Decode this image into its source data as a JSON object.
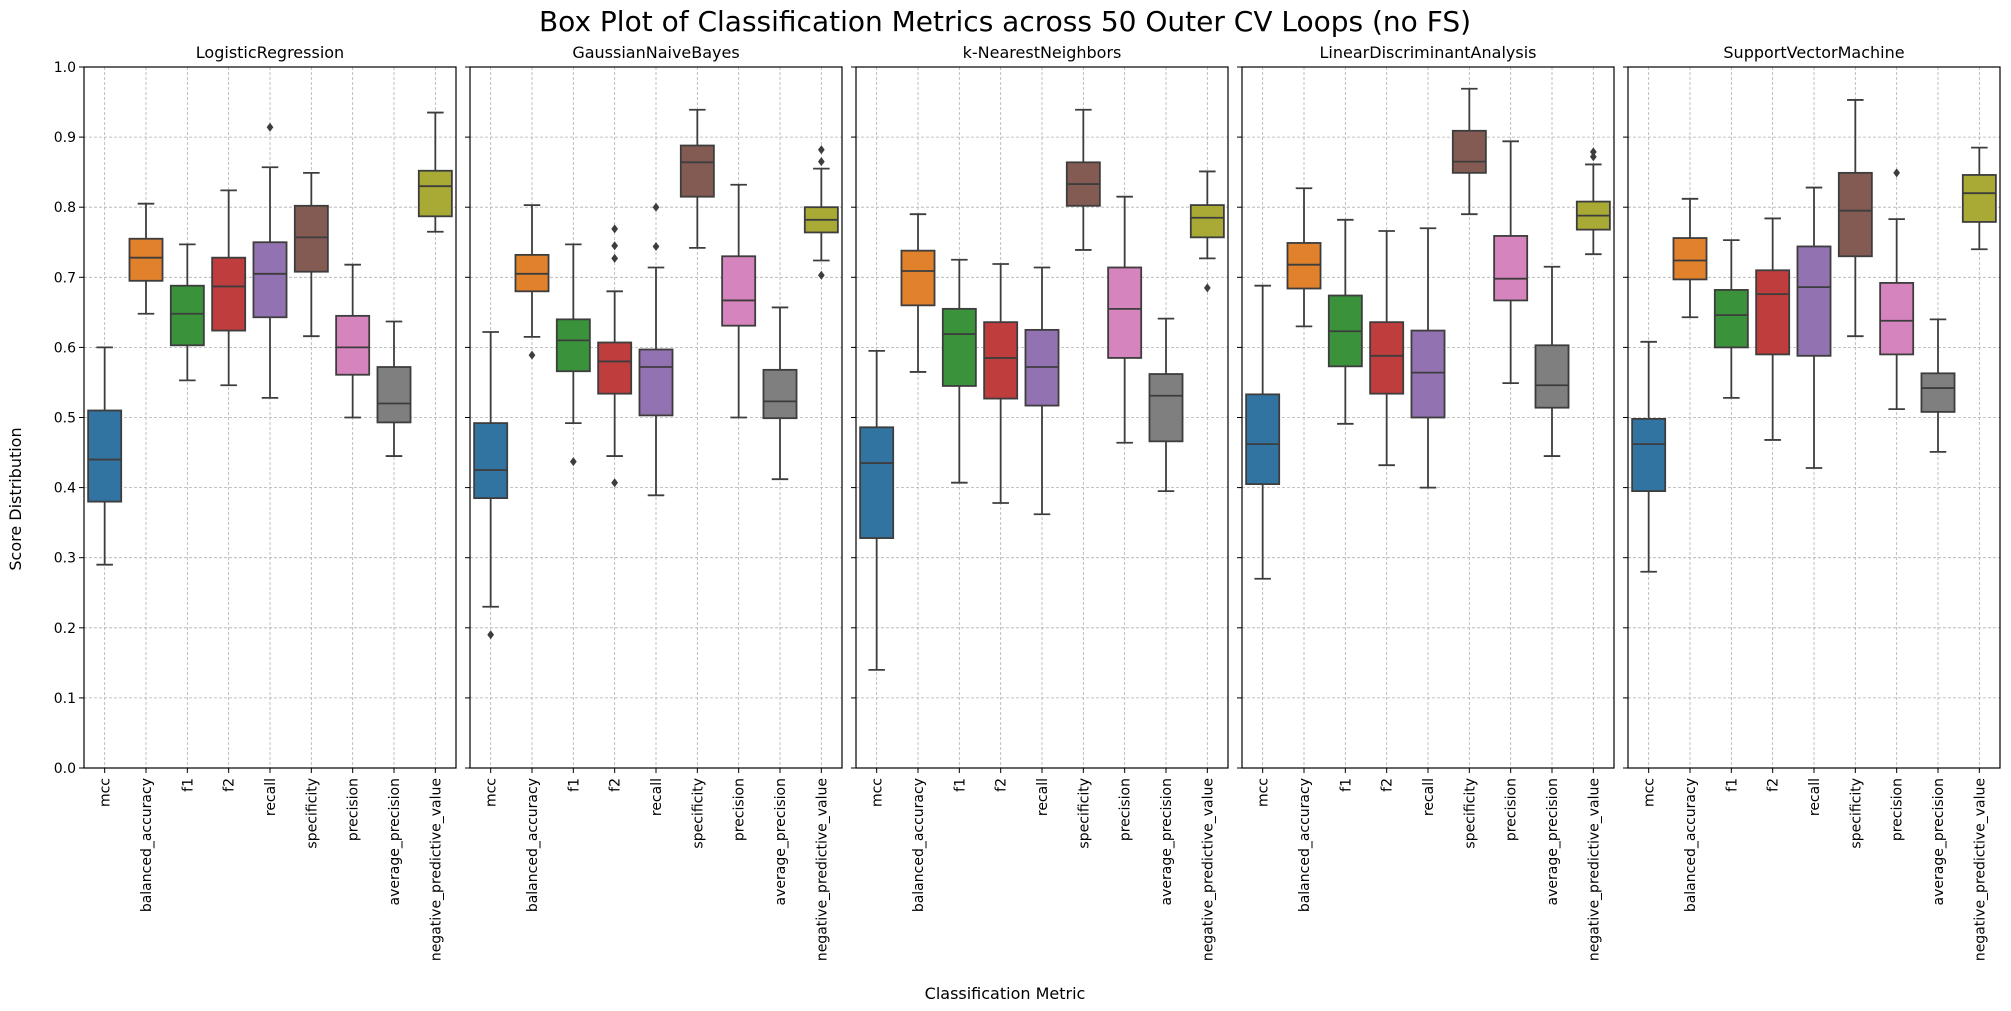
{
  "chart_data": {
    "type": "box",
    "title": "Box Plot of Classification Metrics across 50 Outer CV Loops (no FS)",
    "xlabel": "Classification Metric",
    "ylabel": "Score Distribution",
    "ylim": [
      0,
      1.0
    ],
    "yticks": [
      "0.0",
      "0.1",
      "0.2",
      "0.3",
      "0.4",
      "0.5",
      "0.6",
      "0.7",
      "0.8",
      "0.9",
      "1.0"
    ],
    "grid": true,
    "categories": [
      "mcc",
      "balanced_accuracy",
      "f1",
      "f2",
      "recall",
      "specificity",
      "precision",
      "average_precision",
      "negative_predictive_value"
    ],
    "colors": [
      "#3274a1",
      "#e1812c",
      "#3a923a",
      "#c03d3e",
      "#9372b2",
      "#845b53",
      "#d684bd",
      "#7f7f7f",
      "#a9aa35"
    ],
    "panels": [
      {
        "title": "LogisticRegression",
        "boxes": [
          {
            "q1": 0.38,
            "median": 0.44,
            "q3": 0.51,
            "whislo": 0.29,
            "whishi": 0.6,
            "fliers": []
          },
          {
            "q1": 0.695,
            "median": 0.728,
            "q3": 0.755,
            "whislo": 0.648,
            "whishi": 0.805,
            "fliers": []
          },
          {
            "q1": 0.603,
            "median": 0.648,
            "q3": 0.688,
            "whislo": 0.553,
            "whishi": 0.747,
            "fliers": []
          },
          {
            "q1": 0.624,
            "median": 0.687,
            "q3": 0.728,
            "whislo": 0.546,
            "whishi": 0.824,
            "fliers": []
          },
          {
            "q1": 0.643,
            "median": 0.705,
            "q3": 0.75,
            "whislo": 0.528,
            "whishi": 0.857,
            "fliers": [
              0.914
            ]
          },
          {
            "q1": 0.708,
            "median": 0.757,
            "q3": 0.802,
            "whislo": 0.616,
            "whishi": 0.849,
            "fliers": []
          },
          {
            "q1": 0.561,
            "median": 0.6,
            "q3": 0.645,
            "whislo": 0.5,
            "whishi": 0.718,
            "fliers": []
          },
          {
            "q1": 0.493,
            "median": 0.52,
            "q3": 0.572,
            "whislo": 0.445,
            "whishi": 0.637,
            "fliers": []
          },
          {
            "q1": 0.787,
            "median": 0.83,
            "q3": 0.852,
            "whislo": 0.765,
            "whishi": 0.935,
            "fliers": []
          }
        ]
      },
      {
        "title": "GaussianNaiveBayes",
        "boxes": [
          {
            "q1": 0.385,
            "median": 0.425,
            "q3": 0.492,
            "whislo": 0.23,
            "whishi": 0.622,
            "fliers": [
              0.19
            ]
          },
          {
            "q1": 0.68,
            "median": 0.705,
            "q3": 0.732,
            "whislo": 0.615,
            "whishi": 0.803,
            "fliers": [
              0.589
            ]
          },
          {
            "q1": 0.566,
            "median": 0.61,
            "q3": 0.64,
            "whislo": 0.492,
            "whishi": 0.747,
            "fliers": [
              0.437
            ]
          },
          {
            "q1": 0.534,
            "median": 0.58,
            "q3": 0.607,
            "whislo": 0.445,
            "whishi": 0.68,
            "fliers": [
              0.769,
              0.745,
              0.727,
              0.407
            ]
          },
          {
            "q1": 0.503,
            "median": 0.572,
            "q3": 0.597,
            "whislo": 0.389,
            "whishi": 0.714,
            "fliers": [
              0.8,
              0.744
            ]
          },
          {
            "q1": 0.815,
            "median": 0.864,
            "q3": 0.888,
            "whislo": 0.742,
            "whishi": 0.939,
            "fliers": []
          },
          {
            "q1": 0.631,
            "median": 0.667,
            "q3": 0.73,
            "whislo": 0.5,
            "whishi": 0.832,
            "fliers": []
          },
          {
            "q1": 0.499,
            "median": 0.523,
            "q3": 0.568,
            "whislo": 0.412,
            "whishi": 0.657,
            "fliers": []
          },
          {
            "q1": 0.764,
            "median": 0.782,
            "q3": 0.8,
            "whislo": 0.724,
            "whishi": 0.855,
            "fliers": [
              0.882,
              0.865,
              0.703
            ]
          }
        ]
      },
      {
        "title": "k-NearestNeighbors",
        "boxes": [
          {
            "q1": 0.328,
            "median": 0.435,
            "q3": 0.486,
            "whislo": 0.14,
            "whishi": 0.595,
            "fliers": []
          },
          {
            "q1": 0.66,
            "median": 0.709,
            "q3": 0.738,
            "whislo": 0.565,
            "whishi": 0.79,
            "fliers": []
          },
          {
            "q1": 0.545,
            "median": 0.619,
            "q3": 0.655,
            "whislo": 0.407,
            "whishi": 0.725,
            "fliers": []
          },
          {
            "q1": 0.527,
            "median": 0.585,
            "q3": 0.636,
            "whislo": 0.378,
            "whishi": 0.719,
            "fliers": []
          },
          {
            "q1": 0.517,
            "median": 0.572,
            "q3": 0.625,
            "whislo": 0.362,
            "whishi": 0.714,
            "fliers": []
          },
          {
            "q1": 0.802,
            "median": 0.833,
            "q3": 0.864,
            "whislo": 0.739,
            "whishi": 0.939,
            "fliers": []
          },
          {
            "q1": 0.585,
            "median": 0.655,
            "q3": 0.714,
            "whislo": 0.464,
            "whishi": 0.815,
            "fliers": []
          },
          {
            "q1": 0.466,
            "median": 0.531,
            "q3": 0.562,
            "whislo": 0.395,
            "whishi": 0.641,
            "fliers": []
          },
          {
            "q1": 0.757,
            "median": 0.785,
            "q3": 0.803,
            "whislo": 0.727,
            "whishi": 0.851,
            "fliers": [
              0.685
            ]
          }
        ]
      },
      {
        "title": "LinearDiscriminantAnalysis",
        "boxes": [
          {
            "q1": 0.405,
            "median": 0.462,
            "q3": 0.533,
            "whislo": 0.27,
            "whishi": 0.688,
            "fliers": []
          },
          {
            "q1": 0.684,
            "median": 0.718,
            "q3": 0.749,
            "whislo": 0.63,
            "whishi": 0.827,
            "fliers": []
          },
          {
            "q1": 0.573,
            "median": 0.623,
            "q3": 0.674,
            "whislo": 0.491,
            "whishi": 0.782,
            "fliers": []
          },
          {
            "q1": 0.534,
            "median": 0.588,
            "q3": 0.636,
            "whislo": 0.432,
            "whishi": 0.766,
            "fliers": []
          },
          {
            "q1": 0.5,
            "median": 0.564,
            "q3": 0.624,
            "whislo": 0.4,
            "whishi": 0.77,
            "fliers": []
          },
          {
            "q1": 0.849,
            "median": 0.865,
            "q3": 0.909,
            "whislo": 0.79,
            "whishi": 0.969,
            "fliers": []
          },
          {
            "q1": 0.667,
            "median": 0.698,
            "q3": 0.759,
            "whislo": 0.549,
            "whishi": 0.894,
            "fliers": []
          },
          {
            "q1": 0.514,
            "median": 0.546,
            "q3": 0.603,
            "whislo": 0.445,
            "whishi": 0.715,
            "fliers": []
          },
          {
            "q1": 0.768,
            "median": 0.788,
            "q3": 0.808,
            "whislo": 0.733,
            "whishi": 0.861,
            "fliers": [
              0.879,
              0.872
            ]
          }
        ]
      },
      {
        "title": "SupportVectorMachine",
        "boxes": [
          {
            "q1": 0.395,
            "median": 0.462,
            "q3": 0.498,
            "whislo": 0.28,
            "whishi": 0.608,
            "fliers": []
          },
          {
            "q1": 0.697,
            "median": 0.724,
            "q3": 0.756,
            "whislo": 0.643,
            "whishi": 0.812,
            "fliers": []
          },
          {
            "q1": 0.6,
            "median": 0.646,
            "q3": 0.682,
            "whislo": 0.528,
            "whishi": 0.753,
            "fliers": []
          },
          {
            "q1": 0.59,
            "median": 0.676,
            "q3": 0.71,
            "whislo": 0.468,
            "whishi": 0.784,
            "fliers": []
          },
          {
            "q1": 0.588,
            "median": 0.686,
            "q3": 0.744,
            "whislo": 0.428,
            "whishi": 0.828,
            "fliers": []
          },
          {
            "q1": 0.73,
            "median": 0.795,
            "q3": 0.849,
            "whislo": 0.616,
            "whishi": 0.953,
            "fliers": []
          },
          {
            "q1": 0.59,
            "median": 0.638,
            "q3": 0.692,
            "whislo": 0.512,
            "whishi": 0.783,
            "fliers": [
              0.849
            ]
          },
          {
            "q1": 0.508,
            "median": 0.542,
            "q3": 0.563,
            "whislo": 0.451,
            "whishi": 0.64,
            "fliers": []
          },
          {
            "q1": 0.779,
            "median": 0.82,
            "q3": 0.846,
            "whislo": 0.74,
            "whishi": 0.885,
            "fliers": []
          }
        ]
      }
    ]
  }
}
